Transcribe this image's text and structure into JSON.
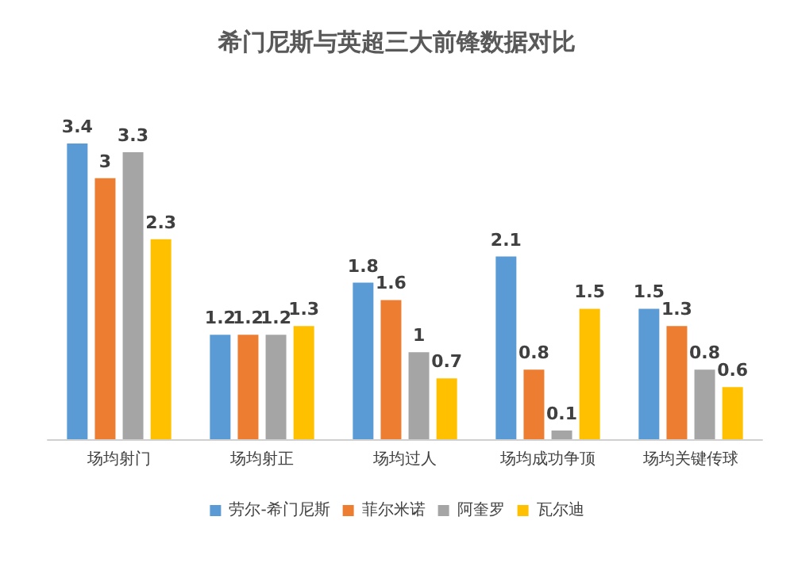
{
  "chart_data": {
    "type": "bar",
    "title": "希门尼斯与英超三大前锋数据对比",
    "categories": [
      "场均射门",
      "场均射正",
      "场均过人",
      "场均成功争顶",
      "场均关键传球"
    ],
    "series": [
      {
        "name": "劳尔-希门尼斯",
        "color": "#5b9bd5",
        "values": [
          3.4,
          1.2,
          1.8,
          2.1,
          1.5
        ]
      },
      {
        "name": "菲尔米诺",
        "color": "#ed7d31",
        "values": [
          3,
          1.2,
          1.6,
          0.8,
          1.3
        ]
      },
      {
        "name": "阿奎罗",
        "color": "#a5a5a5",
        "values": [
          3.3,
          1.2,
          1,
          0.1,
          0.8
        ]
      },
      {
        "name": "瓦尔迪",
        "color": "#ffc000",
        "values": [
          2.3,
          1.3,
          0.7,
          1.5,
          0.6
        ]
      }
    ],
    "data_labels": true,
    "legend": "bottom",
    "tick_labels": "x"
  }
}
